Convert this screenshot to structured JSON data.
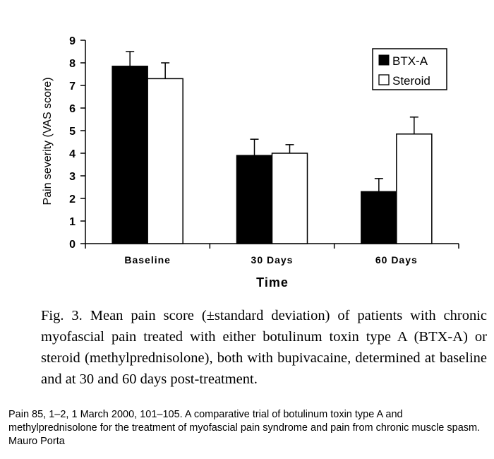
{
  "chart_data": {
    "type": "bar",
    "categories": [
      "Baseline",
      "30 Days",
      "60 Days"
    ],
    "series": [
      {
        "name": "BTX-A",
        "values": [
          7.85,
          3.9,
          2.3
        ],
        "errors": [
          0.65,
          0.72,
          0.58
        ],
        "color": "#000000"
      },
      {
        "name": "Steroid",
        "values": [
          7.3,
          4.0,
          4.85
        ],
        "errors": [
          0.7,
          0.38,
          0.75
        ],
        "color": "#ffffff"
      }
    ],
    "xlabel": "Time",
    "ylabel": "Pain severity (VAS score)",
    "ylim": [
      0,
      9
    ],
    "yticks": [
      "0",
      "1",
      "2",
      "3",
      "4",
      "5",
      "6",
      "7",
      "8",
      "9"
    ],
    "grid": false,
    "legend": "top-right"
  },
  "caption": "Fig. 3.  Mean pain score (±standard deviation) of patients with chronic myofascial pain treated with either botulinum toxin type A (BTX-A) or steroid (methylprednisolone), both with bupivacaine, determined at baseline and at 30 and 60 days post-treatment.",
  "citation": "Pain 85, 1–2, 1 March 2000, 101–105. A comparative trial of botulinum toxin type A and methylprednisolone for the treatment of myofascial pain syndrome and pain from chronic muscle spasm.  Mauro Porta"
}
